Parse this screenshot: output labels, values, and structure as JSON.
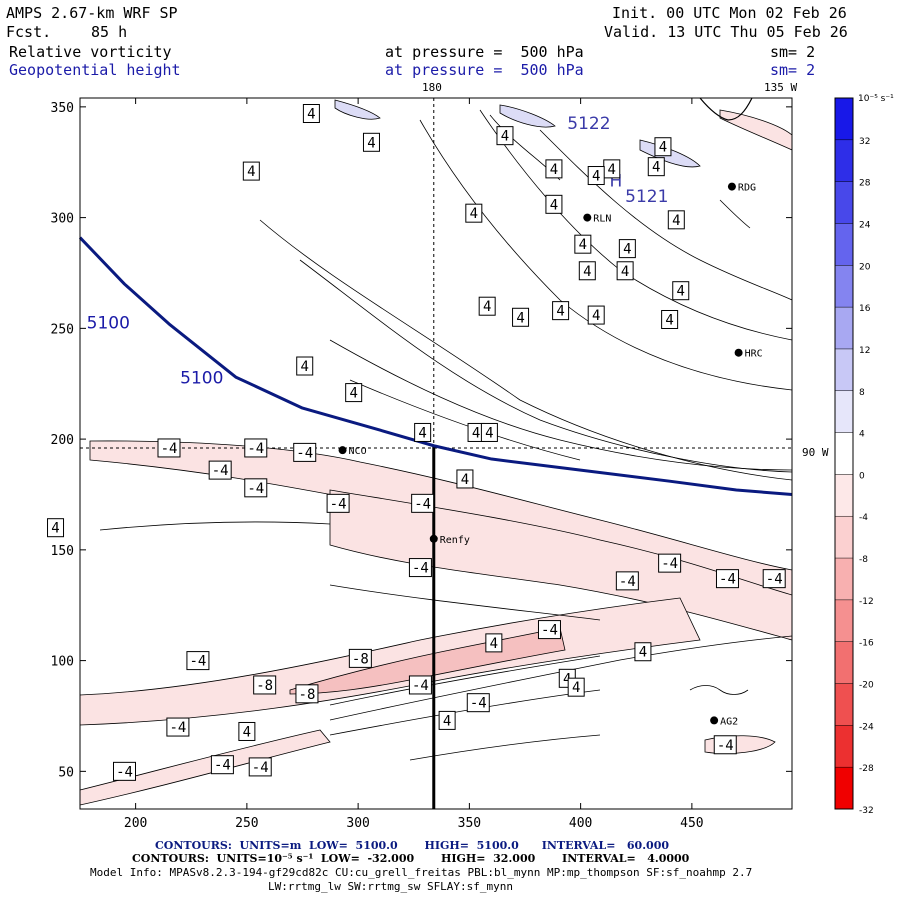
{
  "header": {
    "model": "AMPS 2.67-km WRF SP",
    "fcst_label": "Fcst.",
    "fcst_value": "85 h",
    "init": "Init. 00 UTC Mon 02 Feb 26",
    "valid": "Valid. 13 UTC Thu 05 Feb 26",
    "field1": "Relative vorticity",
    "field2": "Geopotential height",
    "pressure1": "at pressure =  500 hPa",
    "pressure2": "at pressure =  500 hPa",
    "sm1": "sm= 2",
    "sm2": "sm= 2"
  },
  "colors": {
    "height_contour": "#0a1a80",
    "axis": "#000000",
    "neg_light": "#fbe3e3",
    "neg_mid": "#f5c0c0",
    "pos_light": "#dcdcf6"
  },
  "chart_data": {
    "type": "contour",
    "xlim": [
      175,
      495
    ],
    "ylim": [
      33,
      354
    ],
    "x_ticks": [
      200,
      250,
      300,
      350,
      400,
      450
    ],
    "y_ticks": [
      50,
      100,
      150,
      200,
      250,
      300,
      350
    ],
    "grid_lines": {
      "meridian_180": {
        "label": "180",
        "x": 334
      },
      "meridian_135w": {
        "label": "135 W"
      },
      "parallel_90w": {
        "label": "90 W",
        "y": 196
      }
    },
    "height_contour": {
      "value": "5100",
      "points": [
        [
          175,
          291
        ],
        [
          195,
          270
        ],
        [
          215,
          252
        ],
        [
          245,
          228
        ],
        [
          275,
          214
        ],
        [
          310,
          204
        ],
        [
          334,
          197
        ],
        [
          360,
          191
        ],
        [
          400,
          186
        ],
        [
          440,
          181
        ],
        [
          470,
          177
        ],
        [
          495,
          175
        ]
      ],
      "labels": [
        {
          "text": "5100",
          "x": 178,
          "y": 250
        },
        {
          "text": "5100",
          "x": 220,
          "y": 225
        }
      ]
    },
    "height_labels": [
      {
        "text": "5122",
        "x": 394,
        "y": 340
      },
      {
        "text": "H",
        "x": 413,
        "y": 314
      },
      {
        "text": "5121",
        "x": 420,
        "y": 307
      }
    ],
    "stations": [
      {
        "name": "NCO",
        "x": 293,
        "y": 195
      },
      {
        "name": "Renfy",
        "x": 334,
        "y": 155
      },
      {
        "name": "RLN",
        "x": 403,
        "y": 300
      },
      {
        "name": "RDG",
        "x": 468,
        "y": 314
      },
      {
        "name": "HRC",
        "x": 471,
        "y": 239
      },
      {
        "name": "AG2",
        "x": 460,
        "y": 73
      }
    ],
    "contour_labels": [
      {
        "v": "4",
        "x": 279,
        "y": 347
      },
      {
        "v": "4",
        "x": 306,
        "y": 334
      },
      {
        "v": "4",
        "x": 252,
        "y": 321
      },
      {
        "v": "4",
        "x": 388,
        "y": 322
      },
      {
        "v": "4",
        "x": 414,
        "y": 322
      },
      {
        "v": "4",
        "x": 388,
        "y": 306
      },
      {
        "v": "4",
        "x": 352,
        "y": 302
      },
      {
        "v": "4",
        "x": 401,
        "y": 288
      },
      {
        "v": "4",
        "x": 421,
        "y": 286
      },
      {
        "v": "4",
        "x": 403,
        "y": 276
      },
      {
        "v": "4",
        "x": 420,
        "y": 276
      },
      {
        "v": "4",
        "x": 358,
        "y": 260
      },
      {
        "v": "4",
        "x": 373,
        "y": 255
      },
      {
        "v": "4",
        "x": 391,
        "y": 258
      },
      {
        "v": "4",
        "x": 407,
        "y": 256
      },
      {
        "v": "4",
        "x": 445,
        "y": 267
      },
      {
        "v": "4",
        "x": 440,
        "y": 254
      },
      {
        "v": "4",
        "x": 276,
        "y": 233
      },
      {
        "v": "4",
        "x": 298,
        "y": 221
      },
      {
        "v": "4",
        "x": 329,
        "y": 203
      },
      {
        "v": "4",
        "x": 353,
        "y": 203
      },
      {
        "v": "4",
        "x": 359,
        "y": 203
      },
      {
        "v": "4",
        "x": 348,
        "y": 182
      },
      {
        "v": "4",
        "x": 164,
        "y": 160
      },
      {
        "v": "4",
        "x": 361,
        "y": 108
      },
      {
        "v": "4",
        "x": 340,
        "y": 73
      },
      {
        "v": "4",
        "x": 394,
        "y": 92
      },
      {
        "v": "4",
        "x": 398,
        "y": 88
      },
      {
        "v": "4",
        "x": 428,
        "y": 104
      },
      {
        "v": "4",
        "x": 250,
        "y": 68
      },
      {
        "v": "4",
        "x": 437,
        "y": 332
      },
      {
        "v": "4",
        "x": 443,
        "y": 299
      },
      {
        "v": "4",
        "x": 434,
        "y": 323
      },
      {
        "v": "4",
        "x": 407,
        "y": 319
      },
      {
        "v": "4",
        "x": 366,
        "y": 337
      },
      {
        "v": "-4",
        "x": 215,
        "y": 196
      },
      {
        "v": "-4",
        "x": 238,
        "y": 186
      },
      {
        "v": "-4",
        "x": 254,
        "y": 196
      },
      {
        "v": "-4",
        "x": 276,
        "y": 194
      },
      {
        "v": "-4",
        "x": 254,
        "y": 178
      },
      {
        "v": "-4",
        "x": 329,
        "y": 171
      },
      {
        "v": "-4",
        "x": 291,
        "y": 171
      },
      {
        "v": "-4",
        "x": 328,
        "y": 142
      },
      {
        "v": "-4",
        "x": 421,
        "y": 136
      },
      {
        "v": "-4",
        "x": 440,
        "y": 144
      },
      {
        "v": "-4",
        "x": 466,
        "y": 137
      },
      {
        "v": "-4",
        "x": 487,
        "y": 137
      },
      {
        "v": "-4",
        "x": 386,
        "y": 114
      },
      {
        "v": "-4",
        "x": 328,
        "y": 89
      },
      {
        "v": "-4",
        "x": 354,
        "y": 81
      },
      {
        "v": "-4",
        "x": 228,
        "y": 100
      },
      {
        "v": "-4",
        "x": 219,
        "y": 70
      },
      {
        "v": "-4",
        "x": 239,
        "y": 53
      },
      {
        "v": "-4",
        "x": 256,
        "y": 52
      },
      {
        "v": "-4",
        "x": 195,
        "y": 50
      },
      {
        "v": "-4",
        "x": 465,
        "y": 62
      },
      {
        "v": "-8",
        "x": 301,
        "y": 101
      },
      {
        "v": "-8",
        "x": 258,
        "y": 89
      },
      {
        "v": "-8",
        "x": 277,
        "y": 85
      }
    ]
  },
  "colorbar": {
    "unit": "10⁻⁵ s⁻¹",
    "ticks": [
      "32",
      "28",
      "24",
      "20",
      "16",
      "12",
      "8",
      "4",
      "0",
      "-4",
      "-8",
      "-12",
      "-16",
      "-20",
      "-24",
      "-28",
      "-32"
    ],
    "colors": [
      "#1818e8",
      "#2e2ee8",
      "#4848ea",
      "#6464ee",
      "#8484f0",
      "#a8a8f2",
      "#c8c8f6",
      "#e6e6fa",
      "#ffffff",
      "#fde8e8",
      "#fbd0d0",
      "#f8b0b0",
      "#f59090",
      "#f27070",
      "#ef5050",
      "#ec3030",
      "#f00000"
    ]
  },
  "footer": {
    "line1": "CONTOURS:  UNITS=m  LOW=  5100.0       HIGH=  5100.0      INTERVAL=   60.000",
    "line2": "CONTOURS:  UNITS=10⁻⁵ s⁻¹  LOW=  -32.000       HIGH=  32.000       INTERVAL=   4.0000",
    "line3": "Model Info: MPASv8.2.3-194-gf29cd82c CU:cu_grell_freitas PBL:bl_mynn MP:mp_thompson SF:sf_noahmp 2.7",
    "line4": "LW:rrtmg_lw SW:rrtmg_sw SFLAY:sf_mynn"
  }
}
